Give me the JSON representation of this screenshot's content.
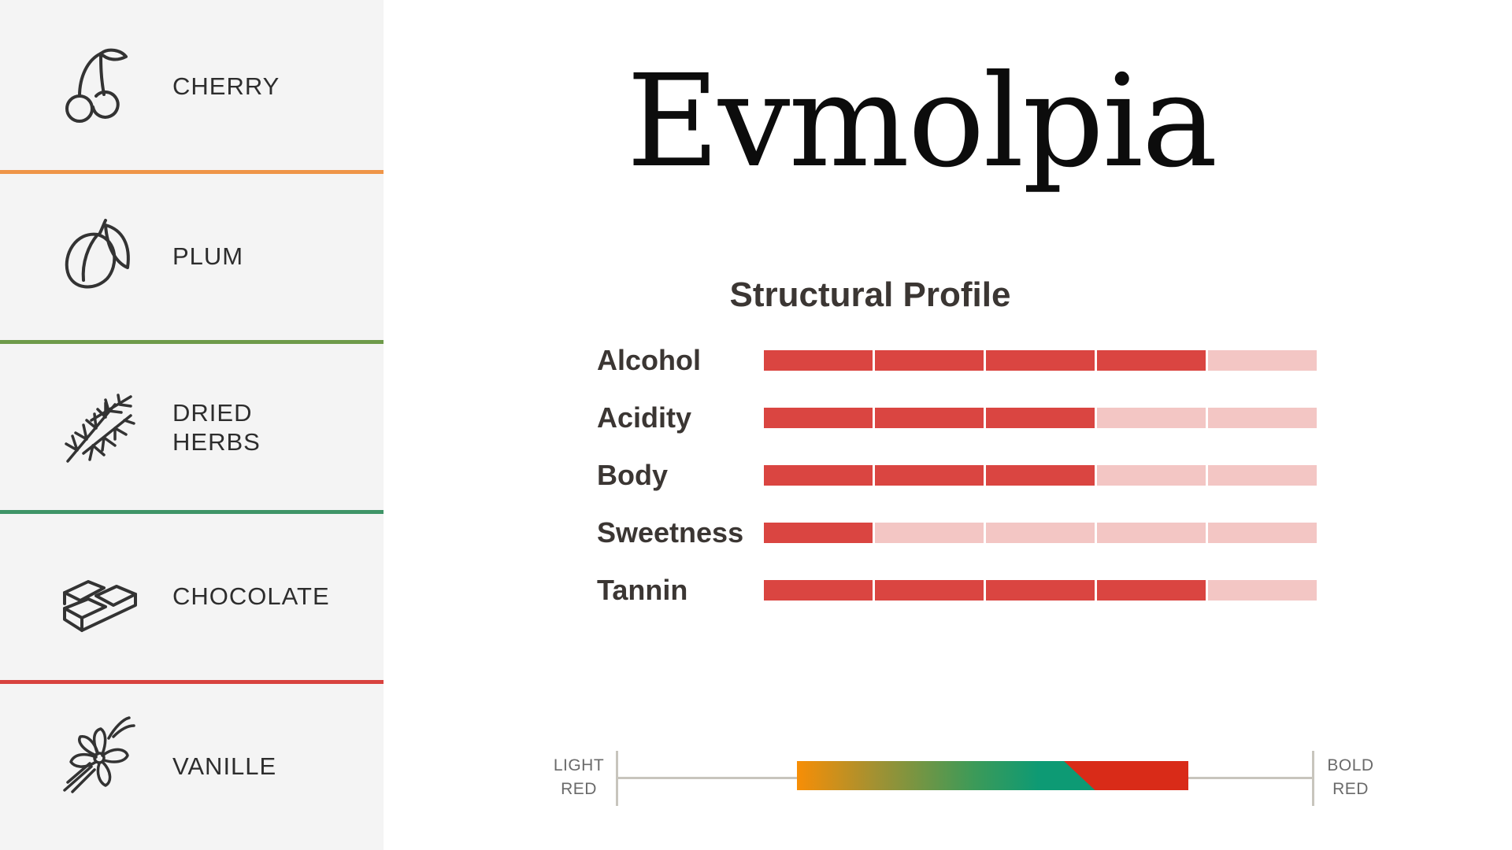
{
  "wine": {
    "name": "Evmolpia"
  },
  "tasting_notes": [
    {
      "label": "CHERRY",
      "icon": "cherry-icon",
      "divider_color": "#ef9548"
    },
    {
      "label": "PLUM",
      "icon": "plum-icon",
      "divider_color": "#6e9a4a"
    },
    {
      "label": "DRIED\nHERBS",
      "icon": "herbs-icon",
      "divider_color": "#3f9467"
    },
    {
      "label": "CHOCOLATE",
      "icon": "chocolate-icon",
      "divider_color": "#d8433f"
    },
    {
      "label": "VANILLE",
      "icon": "vanilla-flower-icon",
      "divider_color": ""
    }
  ],
  "profile": {
    "title": "Structural Profile",
    "max_level": 5,
    "filled_color": "#da4541",
    "empty_color": "#f3c6c4",
    "rows": [
      {
        "label": "Alcohol",
        "level": 4
      },
      {
        "label": "Acidity",
        "level": 3
      },
      {
        "label": "Body",
        "level": 3
      },
      {
        "label": "Sweetness",
        "level": 1
      },
      {
        "label": "Tannin",
        "level": 4
      }
    ]
  },
  "style_scale": {
    "left_label": "LIGHT\nRED",
    "right_label": "BOLD\nRED",
    "range_start": 0.26,
    "range_end": 0.82
  }
}
